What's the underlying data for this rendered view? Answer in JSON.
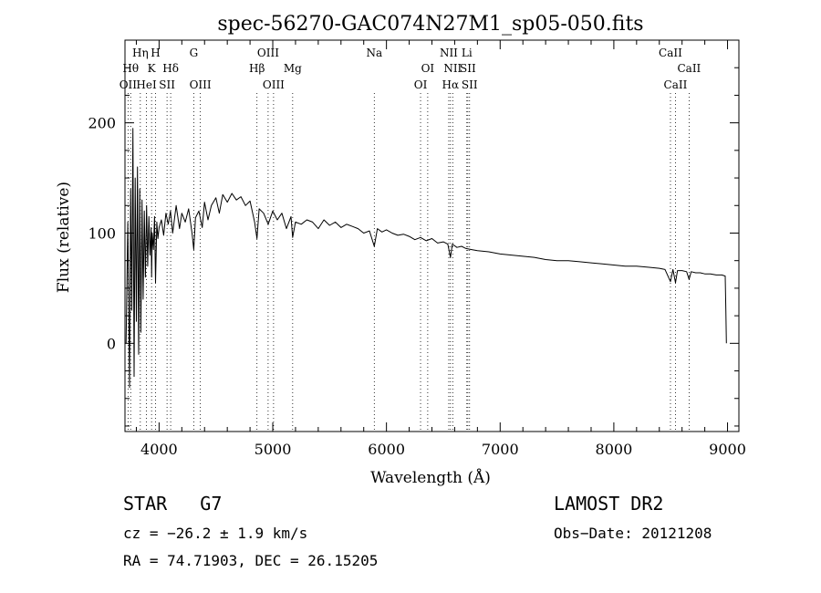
{
  "chart_data": {
    "type": "line",
    "title": "spec-56270-GAC074N27M1_sp05-050.fits",
    "xlabel": "Wavelength (Å)",
    "ylabel": "Flux (relative)",
    "xlim": [
      3700,
      9100
    ],
    "ylim": [
      -80,
      275
    ],
    "x_ticks": [
      4000,
      5000,
      6000,
      7000,
      8000,
      9000
    ],
    "y_ticks": [
      0,
      100,
      200
    ],
    "line_markers": [
      {
        "label": "OII",
        "wavelength": 3727,
        "row": 3
      },
      {
        "label": "Hθ",
        "wavelength": 3750,
        "row": 2
      },
      {
        "label": "Hη",
        "wavelength": 3835,
        "row": 1
      },
      {
        "label": "K",
        "wavelength": 3934,
        "row": 2
      },
      {
        "label": "HeI",
        "wavelength": 3889,
        "row": 3
      },
      {
        "label": "H",
        "wavelength": 3969,
        "row": 1
      },
      {
        "label": "SII",
        "wavelength": 4070,
        "row": 3
      },
      {
        "label": "Hδ",
        "wavelength": 4102,
        "row": 2
      },
      {
        "label": "G",
        "wavelength": 4305,
        "row": 1
      },
      {
        "label": "OIII",
        "wavelength": 4363,
        "row": 3
      },
      {
        "label": "Hβ",
        "wavelength": 4861,
        "row": 2
      },
      {
        "label": "OIII",
        "wavelength": 4959,
        "row": 1
      },
      {
        "label": "OIII",
        "wavelength": 5007,
        "row": 3
      },
      {
        "label": "Mg",
        "wavelength": 5175,
        "row": 2
      },
      {
        "label": "Na",
        "wavelength": 5893,
        "row": 1
      },
      {
        "label": "OI",
        "wavelength": 6300,
        "row": 3
      },
      {
        "label": "OI",
        "wavelength": 6363,
        "row": 2
      },
      {
        "label": "NII",
        "wavelength": 6548,
        "row": 1
      },
      {
        "label": "Hα",
        "wavelength": 6563,
        "row": 3
      },
      {
        "label": "NII",
        "wavelength": 6583,
        "row": 2
      },
      {
        "label": "Li",
        "wavelength": 6707,
        "row": 1
      },
      {
        "label": "SII",
        "wavelength": 6716,
        "row": 2
      },
      {
        "label": "SII",
        "wavelength": 6731,
        "row": 3
      },
      {
        "label": "CaII",
        "wavelength": 8498,
        "row": 1
      },
      {
        "label": "CaII",
        "wavelength": 8542,
        "row": 3
      },
      {
        "label": "CaII",
        "wavelength": 8662,
        "row": 2
      }
    ],
    "series": [
      {
        "x": [
          3710,
          3725,
          3740,
          3750,
          3760,
          3770,
          3780,
          3790,
          3800,
          3810,
          3820,
          3830,
          3840,
          3850,
          3860,
          3870,
          3880,
          3890,
          3900,
          3910,
          3920,
          3930,
          3934,
          3940,
          3950,
          3960,
          3969,
          3980,
          3990,
          4000,
          4020,
          4040,
          4060,
          4080,
          4100,
          4120,
          4150,
          4180,
          4200,
          4230,
          4260,
          4290,
          4305,
          4320,
          4350,
          4380,
          4400,
          4430,
          4460,
          4500,
          4530,
          4560,
          4600,
          4640,
          4680,
          4720,
          4760,
          4800,
          4840,
          4861,
          4880,
          4920,
          4960,
          5000,
          5040,
          5080,
          5120,
          5160,
          5175,
          5200,
          5250,
          5300,
          5350,
          5400,
          5450,
          5500,
          5550,
          5600,
          5650,
          5700,
          5750,
          5800,
          5850,
          5893,
          5920,
          5960,
          6000,
          6050,
          6100,
          6150,
          6200,
          6250,
          6300,
          6350,
          6400,
          6450,
          6500,
          6540,
          6563,
          6580,
          6620,
          6660,
          6700,
          6750,
          6800,
          6900,
          7000,
          7100,
          7200,
          7300,
          7400,
          7500,
          7600,
          7700,
          7800,
          7900,
          8000,
          8100,
          8200,
          8300,
          8400,
          8450,
          8498,
          8520,
          8542,
          8560,
          8600,
          8640,
          8662,
          8680,
          8720,
          8760,
          8800,
          8850,
          8900,
          8950,
          8980,
          8985,
          8990
        ],
        "values": [
          0,
          110,
          -40,
          140,
          30,
          195,
          -30,
          150,
          20,
          160,
          -10,
          140,
          10,
          130,
          40,
          120,
          60,
          125,
          70,
          115,
          80,
          105,
          60,
          100,
          85,
          115,
          55,
          110,
          95,
          105,
          112,
          98,
          118,
          108,
          120,
          100,
          125,
          104,
          118,
          110,
          122,
          100,
          85,
          114,
          120,
          105,
          128,
          112,
          125,
          132,
          118,
          135,
          128,
          136,
          130,
          133,
          125,
          129,
          110,
          95,
          122,
          118,
          108,
          120,
          112,
          118,
          104,
          115,
          96,
          110,
          108,
          112,
          110,
          104,
          112,
          107,
          110,
          105,
          108,
          106,
          104,
          100,
          102,
          88,
          104,
          101,
          103,
          100,
          98,
          99,
          97,
          94,
          96,
          93,
          95,
          91,
          92,
          90,
          78,
          90,
          87,
          88,
          86,
          85,
          84,
          83,
          81,
          80,
          79,
          78,
          76,
          75,
          75,
          74,
          73,
          72,
          71,
          70,
          70,
          69,
          68,
          67,
          56,
          67,
          55,
          66,
          66,
          65,
          58,
          65,
          64,
          64,
          63,
          63,
          62,
          62,
          61,
          30,
          0
        ]
      }
    ]
  },
  "star": {
    "label": "STAR",
    "subclass": "G7"
  },
  "survey": {
    "name": "LAMOST DR2"
  },
  "cz": {
    "text": "cz = −26.2 ± 1.9 km/s"
  },
  "obs_date": {
    "text": "Obs−Date: 20121208"
  },
  "coords": {
    "text": "RA =  74.71903, DEC =  26.15205"
  }
}
